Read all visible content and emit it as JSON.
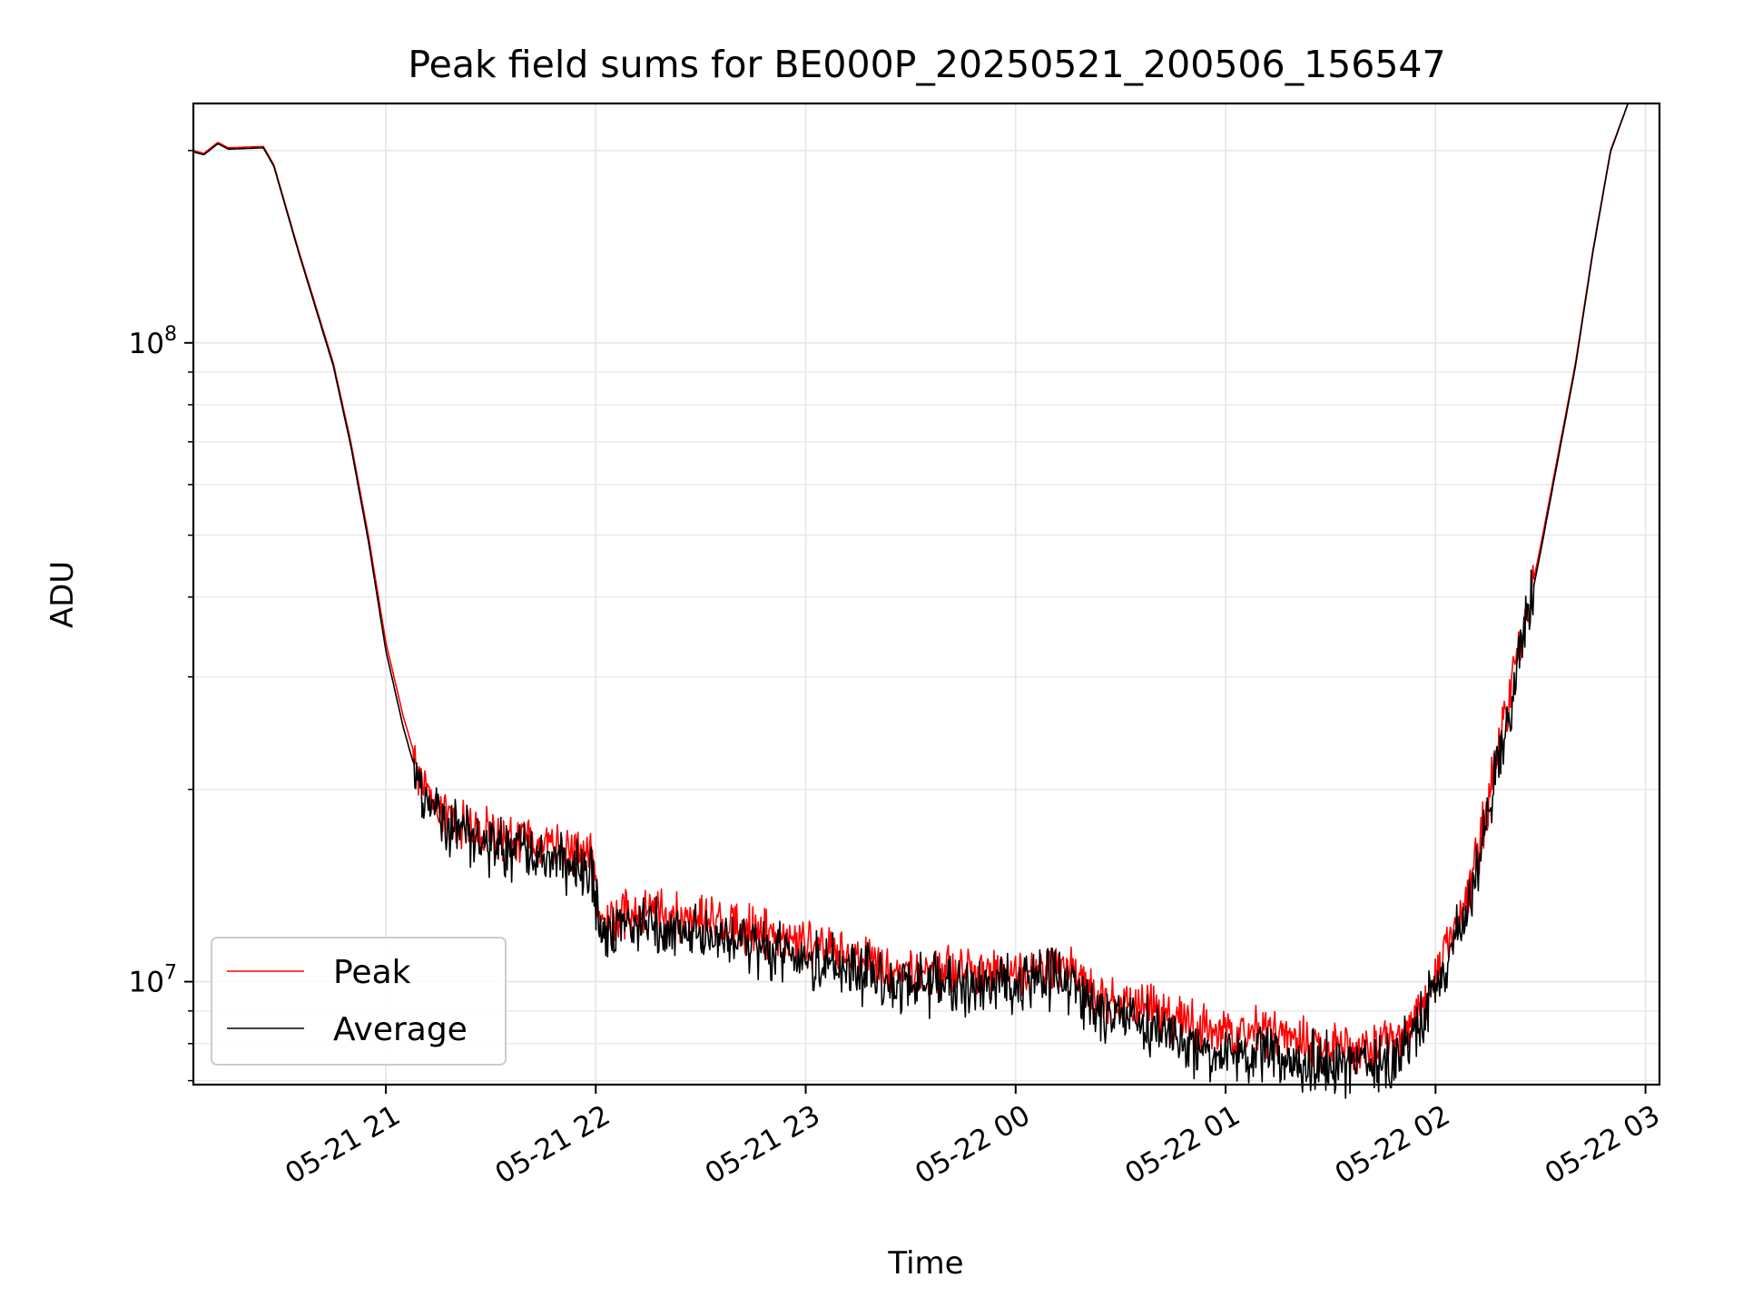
{
  "chart_data": {
    "type": "line",
    "title": "Peak field sums for BE000P_20250521_200506_156547",
    "xlabel": "Time",
    "ylabel": "ADU",
    "y_scale": "log",
    "ylim": [
      6900000,
      237000000
    ],
    "xlim": [
      "2025-05-21 20:05",
      "2025-05-22 03:04"
    ],
    "x_ticks": [
      "05-21 21",
      "05-21 22",
      "05-21 23",
      "05-22 00",
      "05-22 01",
      "05-22 02",
      "05-22 03"
    ],
    "y_ticks": [
      {
        "label": "10",
        "exponent": "7",
        "value": 10000000
      },
      {
        "label": "10",
        "exponent": "8",
        "value": 100000000
      }
    ],
    "grid": true,
    "legend_position": "lower-left",
    "series": [
      {
        "name": "Peak",
        "color": "#ff0000",
        "noise": 0.055,
        "x": [
          "2025-05-21 20:05",
          "2025-05-21 20:08",
          "2025-05-21 20:12",
          "2025-05-21 20:15",
          "2025-05-21 20:25",
          "2025-05-21 20:28",
          "2025-05-21 20:35",
          "2025-05-21 20:45",
          "2025-05-21 20:50",
          "2025-05-21 20:55",
          "2025-05-21 21:00",
          "2025-05-21 21:05",
          "2025-05-21 21:10",
          "2025-05-21 21:15",
          "2025-05-21 21:20",
          "2025-05-21 21:30",
          "2025-05-21 21:45",
          "2025-05-21 21:59",
          "2025-05-21 22:01",
          "2025-05-21 22:15",
          "2025-05-21 22:30",
          "2025-05-21 22:45",
          "2025-05-21 23:00",
          "2025-05-21 23:15",
          "2025-05-21 23:30",
          "2025-05-21 23:45",
          "2025-05-22 00:00",
          "2025-05-22 00:10",
          "2025-05-22 00:15",
          "2025-05-22 00:20",
          "2025-05-22 00:30",
          "2025-05-22 00:45",
          "2025-05-22 00:55",
          "2025-05-22 01:05",
          "2025-05-22 01:15",
          "2025-05-22 01:25",
          "2025-05-22 01:30",
          "2025-05-22 01:40",
          "2025-05-22 01:50",
          "2025-05-22 02:00",
          "2025-05-22 02:10",
          "2025-05-22 02:20",
          "2025-05-22 02:30",
          "2025-05-22 02:40",
          "2025-05-22 02:45",
          "2025-05-22 02:50",
          "2025-05-22 02:55"
        ],
        "y": [
          200000000,
          198000000,
          206000000,
          202000000,
          203000000,
          190000000,
          140000000,
          93000000,
          70000000,
          50000000,
          34000000,
          26000000,
          21000000,
          18800000,
          17600000,
          17000000,
          16300000,
          15600000,
          12700000,
          12900000,
          12500000,
          12000000,
          11400000,
          10800000,
          10400000,
          10300000,
          10400000,
          10600000,
          10500000,
          9700000,
          9300000,
          8800000,
          8400000,
          8300000,
          8200000,
          8000000,
          7900000,
          7800000,
          8200000,
          10000000,
          14000000,
          26000000,
          48000000,
          93000000,
          140000000,
          200000000,
          237000000
        ]
      },
      {
        "name": "Average",
        "color": "#000000",
        "noise": 0.065,
        "x": [
          "2025-05-21 20:05",
          "2025-05-21 20:08",
          "2025-05-21 20:12",
          "2025-05-21 20:15",
          "2025-05-21 20:25",
          "2025-05-21 20:28",
          "2025-05-21 20:35",
          "2025-05-21 20:45",
          "2025-05-21 20:50",
          "2025-05-21 20:55",
          "2025-05-21 21:00",
          "2025-05-21 21:05",
          "2025-05-21 21:10",
          "2025-05-21 21:15",
          "2025-05-21 21:20",
          "2025-05-21 21:30",
          "2025-05-21 21:45",
          "2025-05-21 21:59",
          "2025-05-21 22:01",
          "2025-05-21 22:15",
          "2025-05-21 22:30",
          "2025-05-21 22:45",
          "2025-05-21 23:00",
          "2025-05-21 23:15",
          "2025-05-21 23:30",
          "2025-05-21 23:45",
          "2025-05-22 00:00",
          "2025-05-22 00:10",
          "2025-05-22 00:15",
          "2025-05-22 00:20",
          "2025-05-22 00:30",
          "2025-05-22 00:45",
          "2025-05-22 00:55",
          "2025-05-22 01:05",
          "2025-05-22 01:15",
          "2025-05-22 01:25",
          "2025-05-22 01:30",
          "2025-05-22 01:40",
          "2025-05-22 01:50",
          "2025-05-22 02:00",
          "2025-05-22 02:10",
          "2025-05-22 02:20",
          "2025-05-22 02:30",
          "2025-05-22 02:40",
          "2025-05-22 02:45",
          "2025-05-22 02:50",
          "2025-05-22 02:55"
        ],
        "y": [
          199000000,
          197000000,
          205000000,
          201000000,
          202000000,
          189000000,
          139000000,
          92000000,
          69000000,
          49000000,
          33000000,
          25000000,
          20000000,
          18000000,
          17000000,
          16400000,
          15700000,
          15000000,
          12100000,
          12300000,
          11900000,
          11400000,
          10800000,
          10300000,
          9900000,
          9800000,
          9900000,
          10100000,
          10000000,
          9200000,
          8800000,
          8200000,
          7800000,
          7700000,
          7600000,
          7500000,
          7400000,
          7300000,
          7800000,
          9600000,
          13500000,
          25000000,
          47000000,
          92000000,
          139000000,
          199000000,
          237000000
        ]
      }
    ]
  }
}
